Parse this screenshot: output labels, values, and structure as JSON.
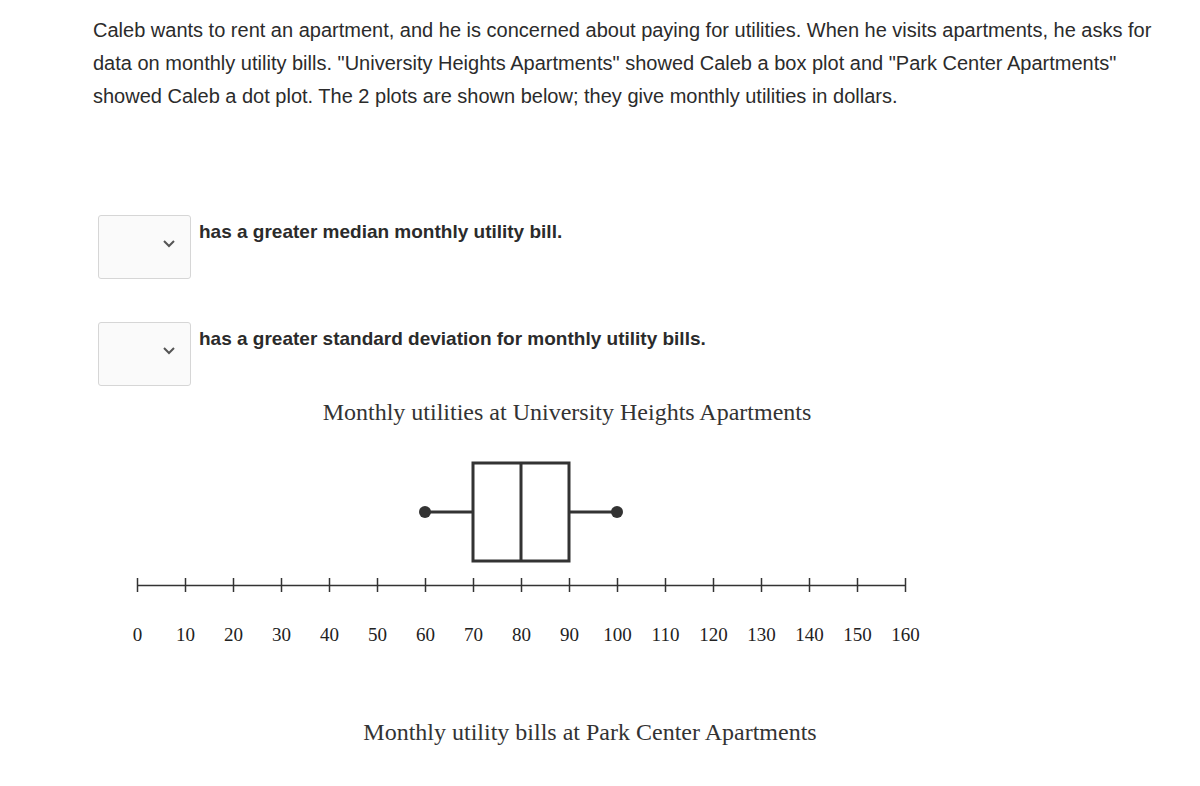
{
  "question": "Caleb wants to rent an apartment, and he is concerned about paying for utilities. When he visits apartments, he asks for data on monthly utility bills. \"University Heights Apartments\" showed Caleb a box plot and \"Park Center Apartments\" showed Caleb a dot plot. The 2 plots are shown below; they give monthly utilities in dollars.",
  "statements": [
    "has a greater median monthly utility bill.",
    "has a greater standard deviation for monthly utility bills."
  ],
  "chart_data": {
    "type": "box",
    "title": "Monthly utilities at University Heights Apartments",
    "min": 60,
    "q1": 70,
    "median": 80,
    "q3": 90,
    "max": 100,
    "xlim": [
      0,
      160
    ],
    "xticks": [
      0,
      10,
      20,
      30,
      40,
      50,
      60,
      70,
      80,
      90,
      100,
      110,
      120,
      130,
      140,
      150,
      160
    ],
    "tick_labels": "x"
  },
  "following_title": "Monthly utility bills at Park Center Apartments"
}
